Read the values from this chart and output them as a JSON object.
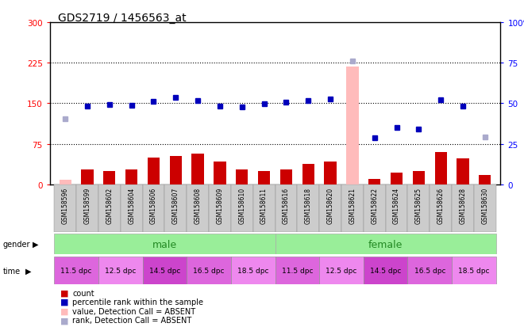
{
  "title": "GDS2719 / 1456563_at",
  "samples": [
    "GSM158596",
    "GSM158599",
    "GSM158602",
    "GSM158604",
    "GSM158606",
    "GSM158607",
    "GSM158608",
    "GSM158609",
    "GSM158610",
    "GSM158611",
    "GSM158616",
    "GSM158618",
    "GSM158620",
    "GSM158621",
    "GSM158622",
    "GSM158624",
    "GSM158625",
    "GSM158626",
    "GSM158628",
    "GSM158630"
  ],
  "count_values": [
    8,
    28,
    25,
    28,
    50,
    52,
    57,
    42,
    28,
    25,
    28,
    38,
    42,
    218,
    10,
    22,
    25,
    60,
    48,
    17
  ],
  "count_absent": [
    true,
    false,
    false,
    false,
    false,
    false,
    false,
    false,
    false,
    false,
    false,
    false,
    false,
    true,
    false,
    false,
    false,
    false,
    false,
    false
  ],
  "rank_values": [
    122,
    145,
    148,
    146,
    154,
    161,
    155,
    145,
    143,
    149,
    152,
    155,
    158,
    228,
    86,
    105,
    103,
    157,
    145,
    88
  ],
  "rank_absent": [
    true,
    false,
    false,
    false,
    false,
    false,
    false,
    false,
    false,
    false,
    false,
    false,
    false,
    true,
    false,
    false,
    false,
    false,
    false,
    true
  ],
  "ylim_left": [
    0,
    300
  ],
  "ylim_right": [
    0,
    100
  ],
  "yticks_left": [
    0,
    75,
    150,
    225,
    300
  ],
  "yticks_right": [
    0,
    25,
    50,
    75,
    100
  ],
  "count_color_present": "#cc0000",
  "count_color_absent": "#ffbbbb",
  "rank_color_present": "#0000bb",
  "rank_color_absent": "#aaaacc",
  "gender_male_color": "#99ee99",
  "gender_female_color": "#99ee99",
  "time_colors": [
    "#dd66dd",
    "#ee88ee",
    "#cc44cc",
    "#dd66dd",
    "#ee88ee"
  ],
  "grid_color": "black",
  "legend_labels": [
    "count",
    "percentile rank within the sample",
    "value, Detection Call = ABSENT",
    "rank, Detection Call = ABSENT"
  ],
  "legend_colors": [
    "#cc0000",
    "#0000bb",
    "#ffbbbb",
    "#aaaacc"
  ],
  "time_labels": [
    "11.5 dpc",
    "12.5 dpc",
    "14.5 dpc",
    "16.5 dpc",
    "18.5 dpc"
  ]
}
